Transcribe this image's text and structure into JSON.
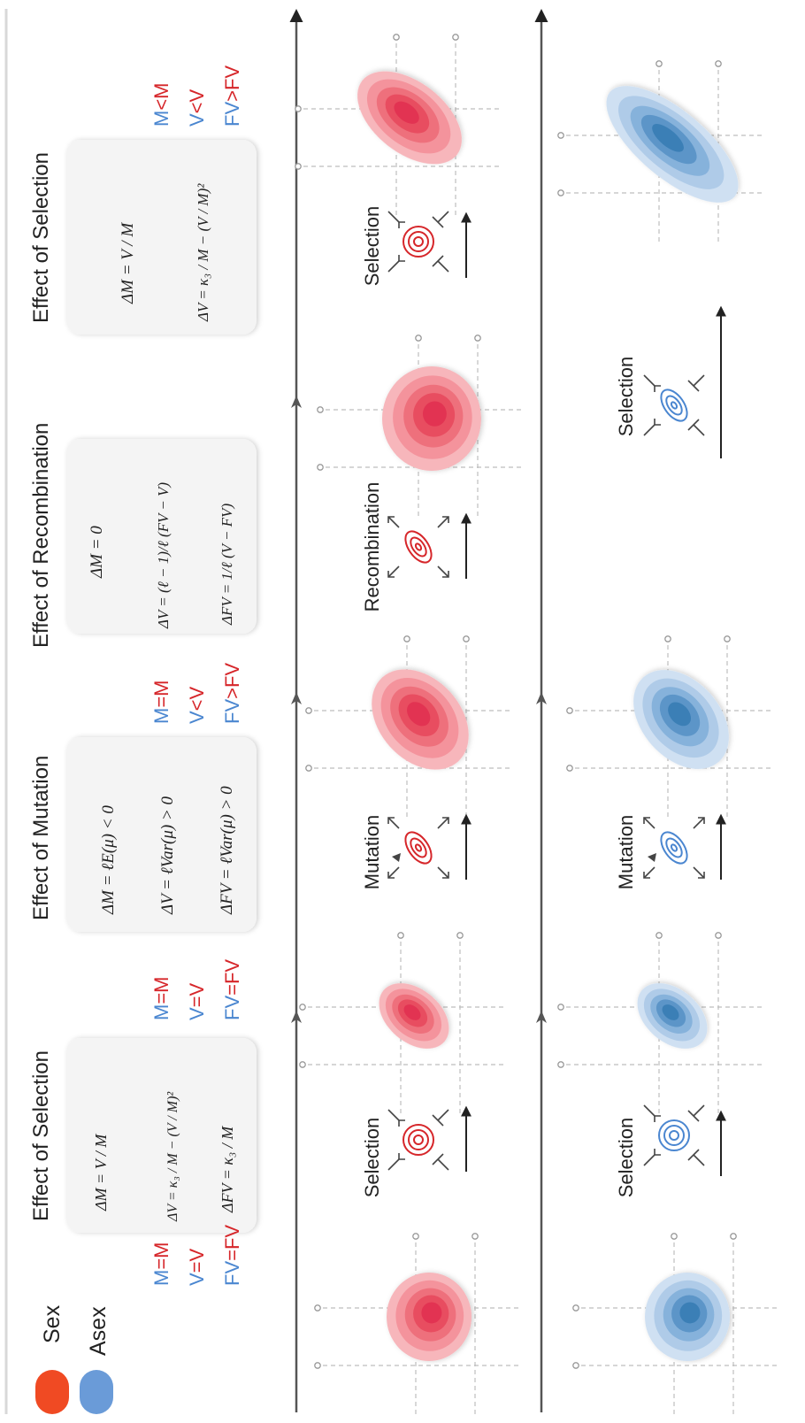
{
  "legend": {
    "sex_label": "Sex",
    "asex_label": "Asex",
    "sex_color": "#f04a23",
    "asex_color": "#6a9bd8"
  },
  "colors": {
    "red_text": "#d6262a",
    "blue_text": "#4a86d0",
    "sex_fill": [
      "#f7b6bb",
      "#f4939c",
      "#ee707c",
      "#e84d60",
      "#e23352"
    ],
    "asex_fill": [
      "#cfe0f2",
      "#afcbe8",
      "#86b2db",
      "#5c95c8",
      "#3b7fb6"
    ],
    "panel_bg": "#f4f4f4",
    "axis": "#555555"
  },
  "panels": [
    {
      "title": "Effect of Selection",
      "equations": [
        "ΔM = V / M",
        "ΔV = κ₃ / M − (V / M)²",
        "ΔFV = κ₃ / M"
      ]
    },
    {
      "title": "Effect of Mutation",
      "equations": [
        "ΔM = ℓE(μ) < 0",
        "ΔV = ℓVar(μ) > 0",
        "ΔFV = ℓVar(μ) > 0"
      ]
    },
    {
      "title": "Effect of Recombination",
      "equations": [
        "ΔM = 0",
        "ΔV = (ℓ − 1)/ℓ (FV − V)",
        "ΔFV = 1/ℓ (V − FV)"
      ]
    },
    {
      "title": "Effect of Selection",
      "equations": [
        "ΔM = V / M",
        "ΔV = κ₃ / M − (V / M)²"
      ]
    }
  ],
  "comparisons": [
    [
      {
        "a": "M",
        "op": "=",
        "b": "M"
      },
      {
        "a": "V",
        "op": "=",
        "b": "V"
      },
      {
        "a": "FV",
        "op": "=",
        "b": "FV"
      }
    ],
    [
      {
        "a": "M",
        "op": "=",
        "b": "M"
      },
      {
        "a": "V",
        "op": "=",
        "b": "V"
      },
      {
        "a": "FV",
        "op": "=",
        "b": "FV"
      }
    ],
    [
      {
        "a": "M",
        "op": "=",
        "b": "M"
      },
      {
        "a": "V",
        "op": "<",
        "b": "V"
      },
      {
        "a": "FV",
        "op": ">",
        "b": "FV"
      }
    ],
    [
      {
        "a": "M",
        "op": "<",
        "b": "M"
      },
      {
        "a": "V",
        "op": "<",
        "b": "V"
      },
      {
        "a": "FV",
        "op": ">",
        "b": "FV"
      }
    ]
  ],
  "processes": {
    "sex": [
      "Selection",
      "Mutation",
      "Recombination",
      "Selection"
    ],
    "asex": [
      "Selection",
      "Mutation",
      "Selection"
    ]
  }
}
